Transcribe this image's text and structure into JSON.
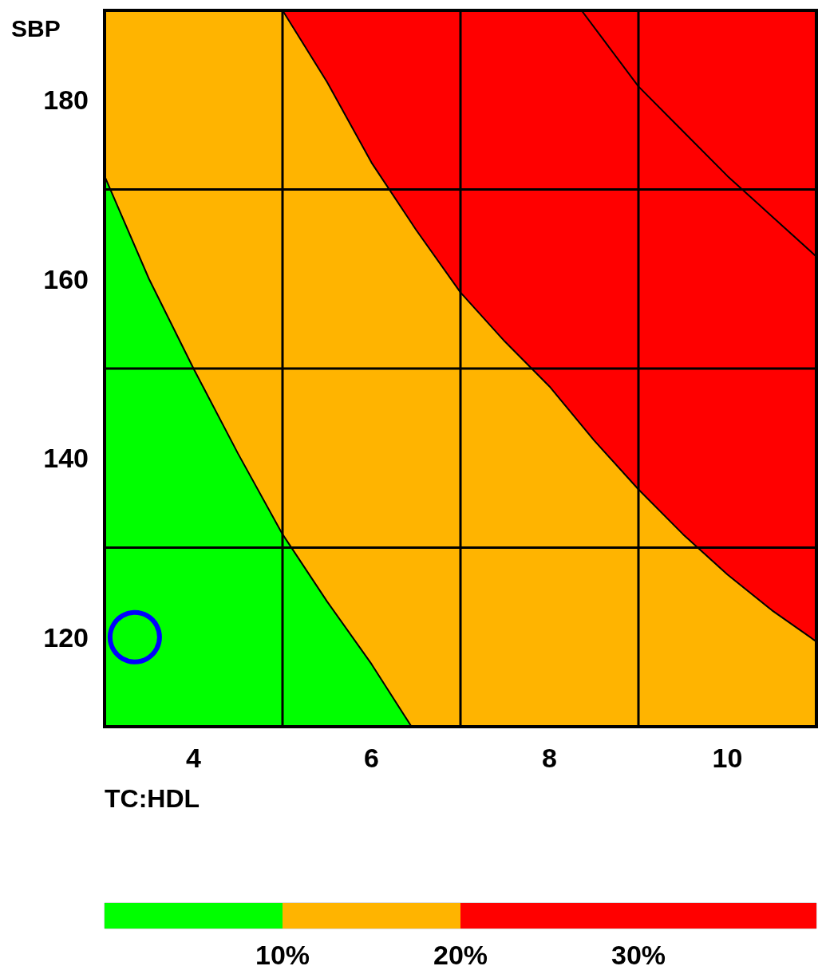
{
  "chart_data": {
    "type": "area",
    "xlabel": "TC:HDL",
    "ylabel": "SBP",
    "xlim": [
      3,
      11
    ],
    "ylim": [
      110,
      190
    ],
    "xticks": [
      4,
      {
        "value": 5,
        "label": null
      },
      6,
      {
        "value": 7,
        "label": null
      },
      8,
      {
        "value": 9,
        "label": null
      },
      10
    ],
    "yticks": [
      120,
      {
        "value": 130,
        "label": null
      },
      140,
      {
        "value": 150,
        "label": null
      },
      160,
      {
        "value": 170,
        "label": null
      },
      180
    ],
    "grid": true,
    "bands": [
      {
        "axis": "y",
        "from": 110,
        "to": 190,
        "color": "#ff0000"
      },
      {
        "axis": "x",
        "from": 3,
        "to": 5,
        "color": "#ffb400"
      }
    ],
    "clim": [
      0,
      40
    ],
    "cticks": [
      {
        "value": 10,
        "label": "10%"
      },
      {
        "value": 20,
        "label": "20%"
      },
      {
        "value": 30,
        "label": "30%"
      }
    ],
    "series": [
      {
        "type": "area",
        "color": "#ffb400",
        "x": [
          5,
          5.5,
          6,
          6.5,
          7,
          7.5,
          8,
          8.5,
          9,
          9.5,
          10,
          10.5,
          11
        ],
        "values": [
          190,
          182,
          173,
          165.5,
          158.5,
          153,
          148,
          142,
          136.5,
          131.5,
          127,
          123,
          119.5
        ]
      },
      {
        "type": "area",
        "color": "#00ff00",
        "x": [
          3,
          3.5,
          4,
          4.5,
          5,
          5.5,
          6,
          6.45
        ],
        "values": [
          171.5,
          160,
          150,
          140.5,
          131.5,
          124,
          117,
          110
        ]
      },
      {
        "type": "line",
        "color": "#000000",
        "x": [
          8.36,
          9,
          9.5,
          10,
          10.5,
          11
        ],
        "values": [
          190,
          181.5,
          176.5,
          171.5,
          167,
          162.5
        ]
      },
      {
        "type": "scatter",
        "color": "#0000ff",
        "marker": "circle",
        "x": [
          3.34
        ],
        "values": [
          120
        ]
      }
    ]
  }
}
